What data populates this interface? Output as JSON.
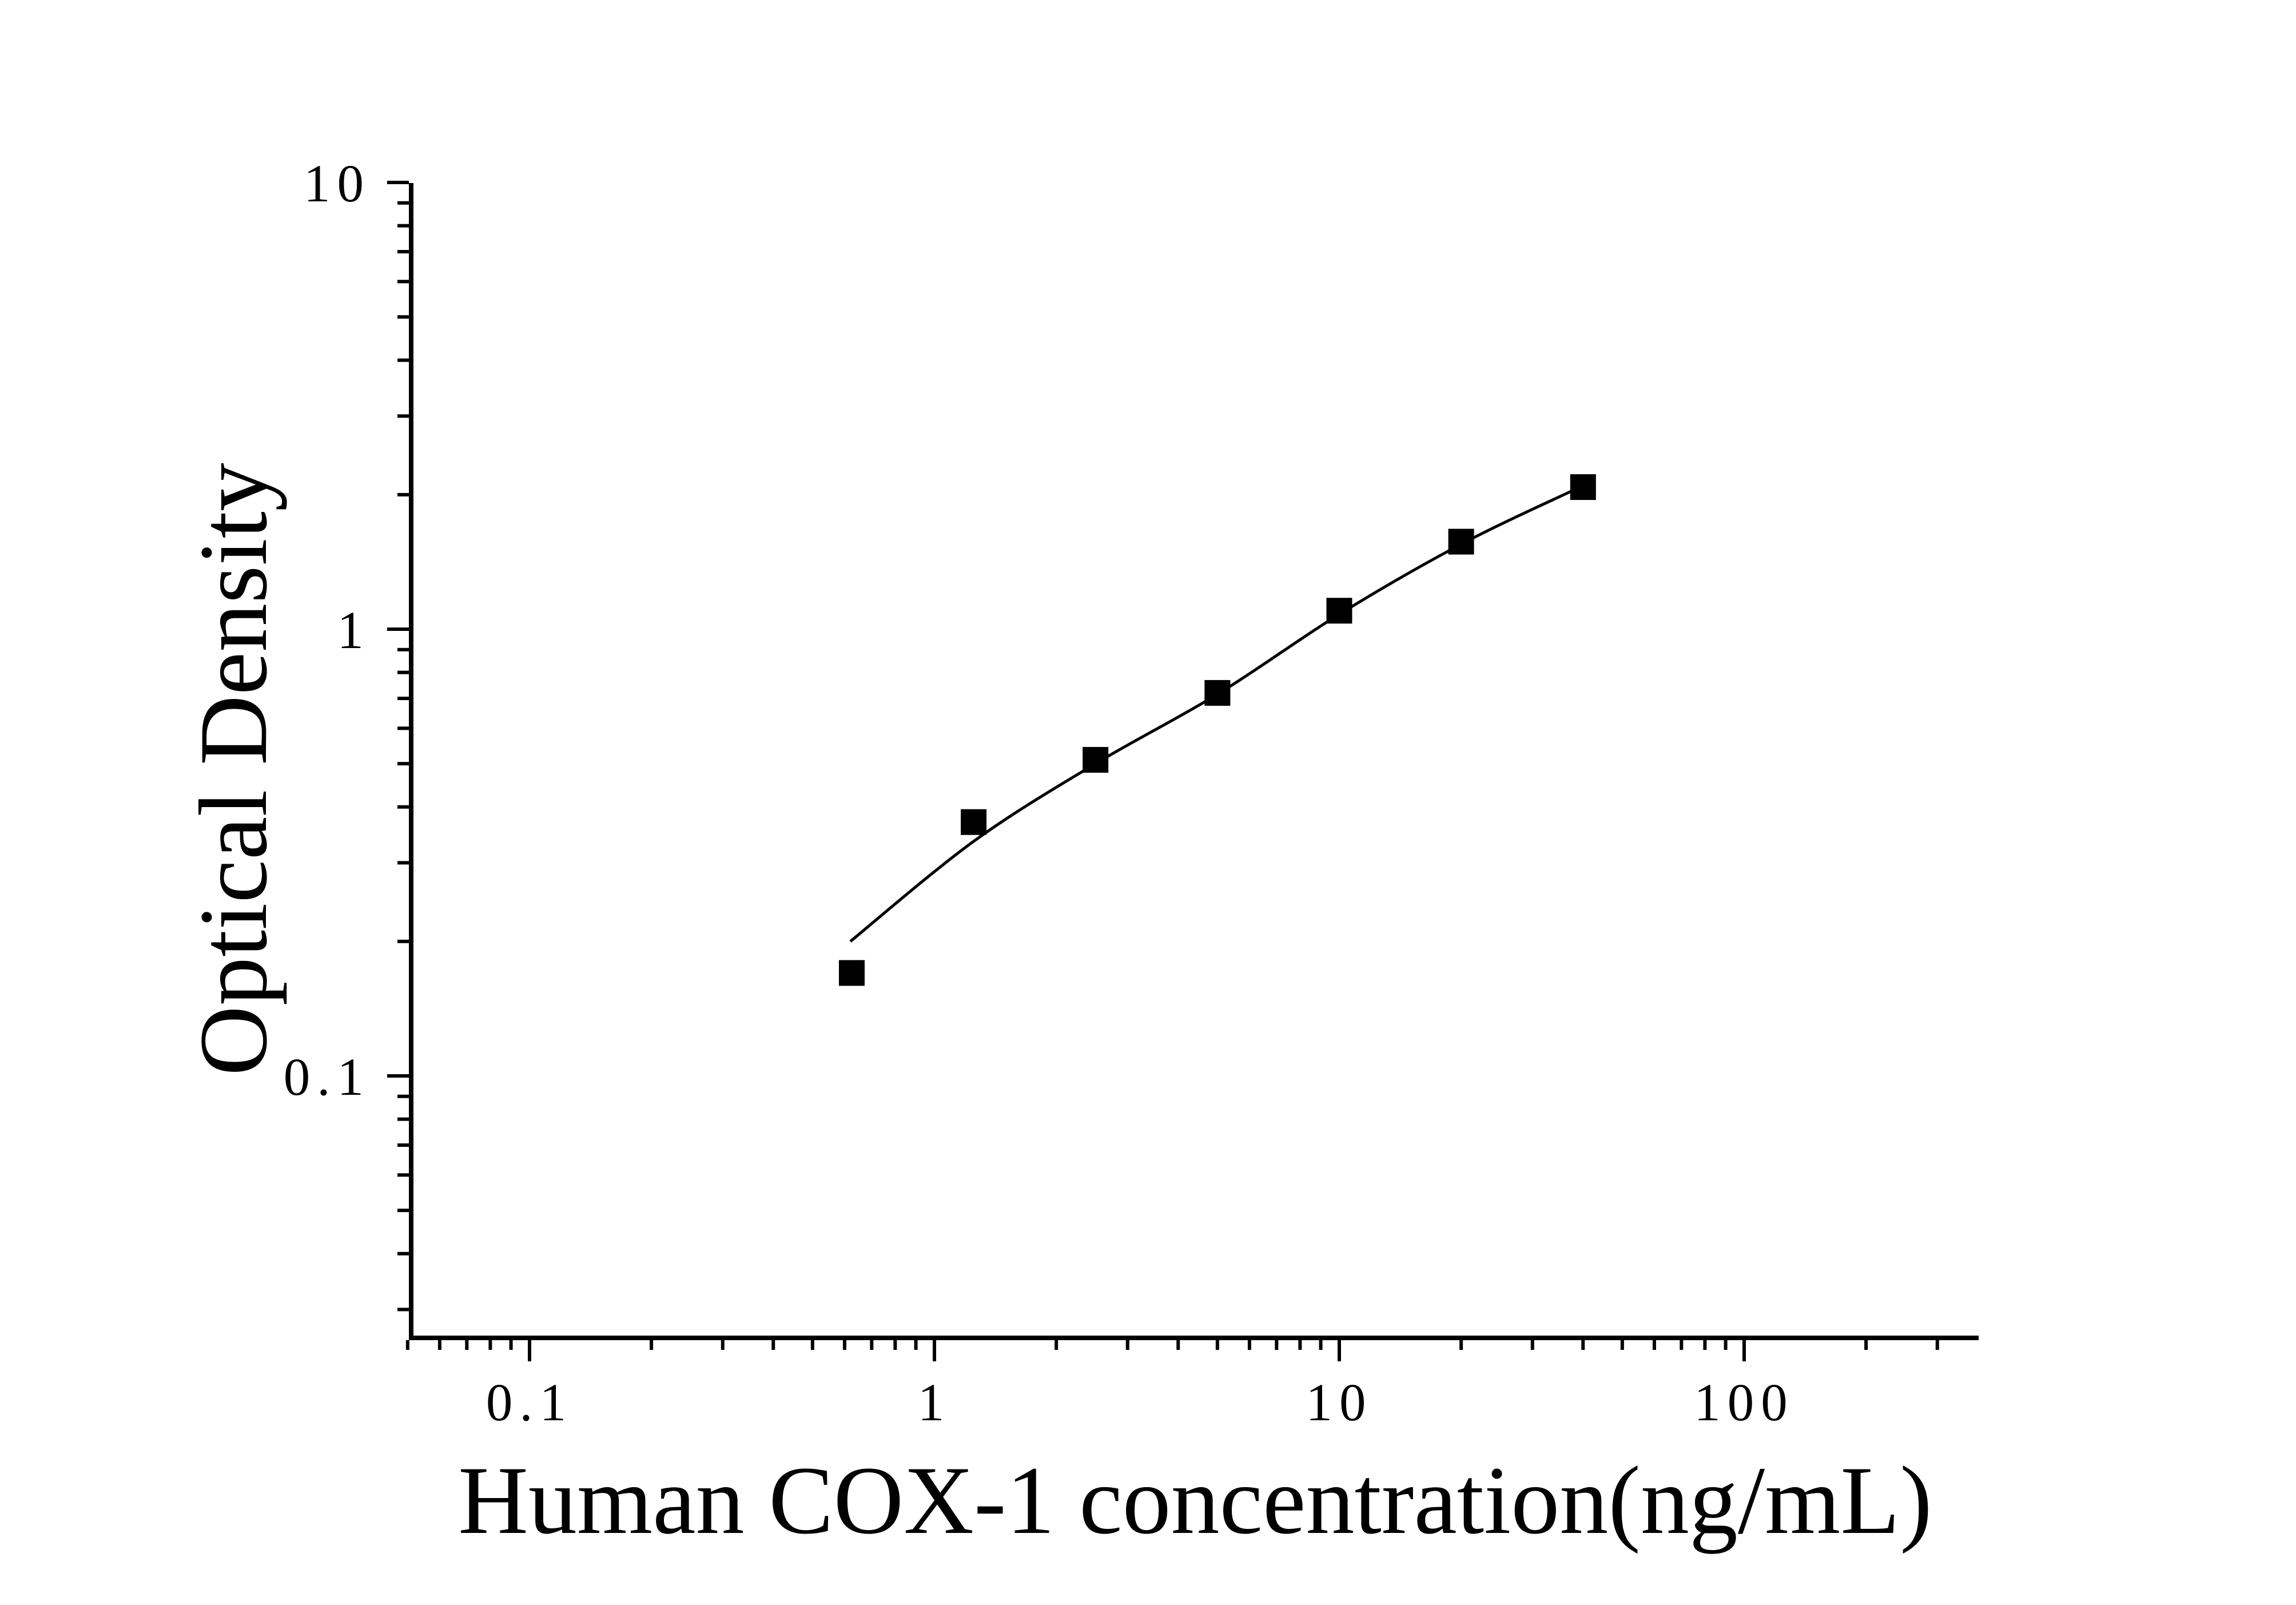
{
  "page": {
    "background": "#ffffff",
    "foreground": "#000000"
  },
  "chart_data": {
    "type": "scatter",
    "title": "",
    "xlabel": "Human COX-1 concentration(ng/mL)",
    "ylabel": "Optical Density",
    "x_scale": "log",
    "y_scale": "log",
    "x_range": [
      0.05,
      380
    ],
    "y_range": [
      0.026,
      10
    ],
    "x_tick_values": [
      0.1,
      1,
      10,
      100
    ],
    "x_tick_labels": [
      "0.1",
      "1",
      "10",
      "100"
    ],
    "y_tick_values": [
      0.1,
      1,
      10
    ],
    "y_tick_labels": [
      "0.1",
      "1",
      "10"
    ],
    "grid": false,
    "legend": "none",
    "marker_shape": "filled-square",
    "marker_color": "#000000",
    "line_color": "#000000",
    "series": [
      {
        "name": "standard-points",
        "x": [
          0.625,
          1.25,
          2.5,
          5,
          10,
          20,
          40
        ],
        "y": [
          0.17,
          0.37,
          0.51,
          0.72,
          1.1,
          1.57,
          2.08
        ]
      }
    ],
    "fit_curve": {
      "name": "fitted-standard-curve",
      "x": [
        0.62,
        1.25,
        2.5,
        5,
        10,
        20,
        38
      ],
      "y": [
        0.2,
        0.335,
        0.5,
        0.715,
        1.08,
        1.55,
        2.05
      ]
    }
  }
}
